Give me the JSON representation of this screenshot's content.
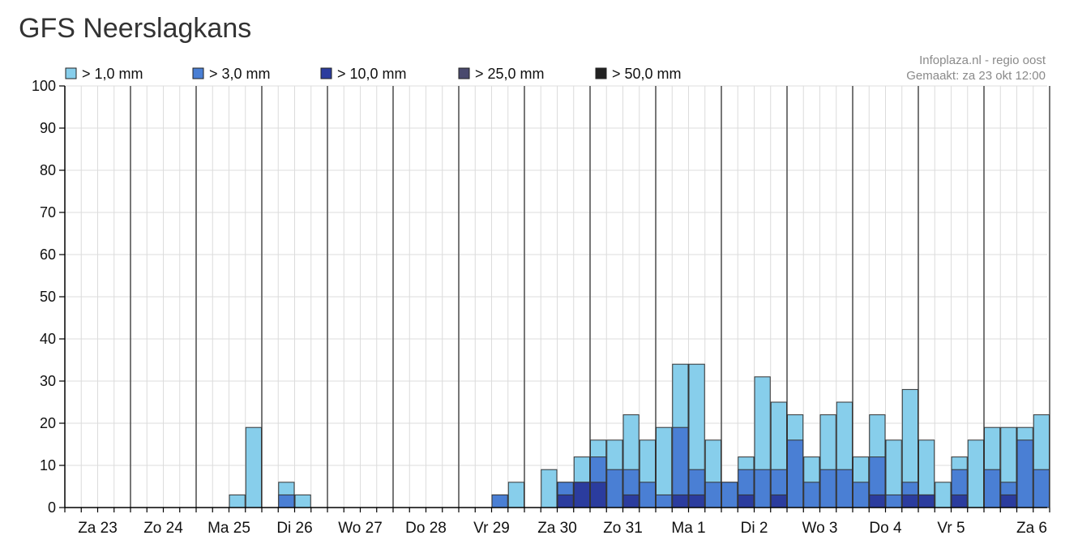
{
  "page": {
    "title": "GFS Neerslagkans"
  },
  "source": {
    "line1": "Infoplaza.nl - regio oost",
    "line2": "Gemaakt: za 23 okt 12:00"
  },
  "chart_data": {
    "type": "bar",
    "stacked": "overlaid-threshold",
    "title": "GFS Neerslagkans",
    "xlabel": "",
    "ylabel": "",
    "ylim": [
      0,
      100
    ],
    "yticks": [
      0,
      10,
      20,
      30,
      40,
      50,
      60,
      70,
      80,
      90,
      100
    ],
    "day_labels": [
      "Za 23",
      "Zo 24",
      "Ma 25",
      "Di 26",
      "Wo 27",
      "Do 28",
      "Vr 29",
      "Za 30",
      "Zo 31",
      "Ma 1",
      "Di 2",
      "Wo 3",
      "Do 4",
      "Vr 5",
      "Za 6"
    ],
    "grid": true,
    "legend": {
      "placement": "top",
      "entries": [
        {
          "label": "> 1,0 mm",
          "color": "#87ceeb"
        },
        {
          "label": "> 3,0 mm",
          "color": "#4a7fd4"
        },
        {
          "label": "> 10,0 mm",
          "color": "#2b3c9e"
        },
        {
          "label": "> 25,0 mm",
          "color": "#4a4a6e"
        },
        {
          "label": "> 50,0 mm",
          "color": "#222222"
        }
      ]
    },
    "series": [
      {
        "name": "> 1,0 mm",
        "values": [
          0,
          0,
          0,
          0,
          0,
          0,
          0,
          0,
          0,
          0,
          3,
          19,
          0,
          6,
          3,
          0,
          0,
          0,
          0,
          0,
          0,
          0,
          0,
          0,
          0,
          0,
          3,
          6,
          0,
          9,
          6,
          12,
          16,
          16,
          22,
          16,
          19,
          34,
          34,
          16,
          6,
          12,
          31,
          25,
          22,
          12,
          22,
          25,
          12,
          22,
          16,
          28,
          16,
          6,
          12,
          16,
          19,
          19,
          19,
          22
        ]
      },
      {
        "name": "> 3,0 mm",
        "values": [
          0,
          0,
          0,
          0,
          0,
          0,
          0,
          0,
          0,
          0,
          0,
          0,
          0,
          3,
          0,
          0,
          0,
          0,
          0,
          0,
          0,
          0,
          0,
          0,
          0,
          0,
          3,
          0,
          0,
          0,
          6,
          6,
          12,
          9,
          9,
          6,
          3,
          19,
          9,
          6,
          6,
          9,
          9,
          9,
          16,
          6,
          9,
          9,
          6,
          12,
          3,
          6,
          3,
          0,
          9,
          0,
          9,
          6,
          16,
          9
        ]
      },
      {
        "name": "> 10,0 mm",
        "values": [
          0,
          0,
          0,
          0,
          0,
          0,
          0,
          0,
          0,
          0,
          0,
          0,
          0,
          0,
          0,
          0,
          0,
          0,
          0,
          0,
          0,
          0,
          0,
          0,
          0,
          0,
          0,
          0,
          0,
          0,
          3,
          6,
          6,
          0,
          3,
          0,
          0,
          3,
          3,
          0,
          0,
          3,
          0,
          3,
          0,
          0,
          0,
          0,
          0,
          3,
          0,
          3,
          3,
          0,
          3,
          0,
          0,
          3,
          0,
          0
        ]
      },
      {
        "name": "> 25,0 mm",
        "values": [
          0,
          0,
          0,
          0,
          0,
          0,
          0,
          0,
          0,
          0,
          0,
          0,
          0,
          0,
          0,
          0,
          0,
          0,
          0,
          0,
          0,
          0,
          0,
          0,
          0,
          0,
          0,
          0,
          0,
          0,
          0,
          0,
          0,
          0,
          0,
          0,
          0,
          0,
          0,
          0,
          0,
          0,
          0,
          0,
          0,
          0,
          0,
          0,
          0,
          0,
          0,
          0,
          0,
          0,
          0,
          0,
          0,
          0,
          0,
          0
        ]
      },
      {
        "name": "> 50,0 mm",
        "values": [
          0,
          0,
          0,
          0,
          0,
          0,
          0,
          0,
          0,
          0,
          0,
          0,
          0,
          0,
          0,
          0,
          0,
          0,
          0,
          0,
          0,
          0,
          0,
          0,
          0,
          0,
          0,
          0,
          0,
          0,
          0,
          0,
          0,
          0,
          0,
          0,
          0,
          0,
          0,
          0,
          0,
          0,
          0,
          0,
          0,
          0,
          0,
          0,
          0,
          0,
          0,
          0,
          0,
          0,
          0,
          0,
          0,
          0,
          0,
          0
        ]
      }
    ]
  }
}
